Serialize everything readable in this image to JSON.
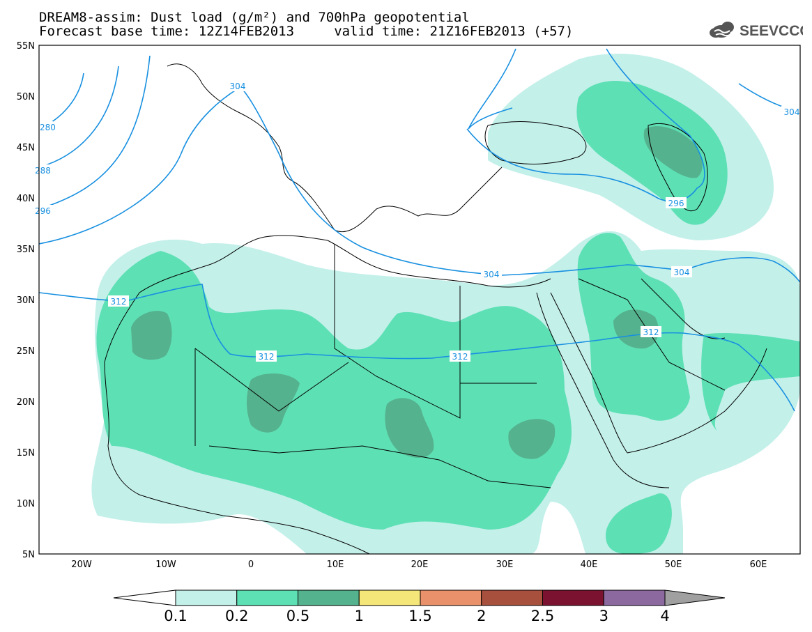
{
  "header": {
    "line1": "DREAM8-assim: Dust load (g/m²) and 700hPa geopotential",
    "line2": "Forecast base time: 12Z14FEB2013     valid time: 21Z16FEB2013 (+57)",
    "logo_text": "SEEVCCC"
  },
  "map": {
    "lon_range": [
      -25,
      65
    ],
    "lat_range": [
      5,
      55
    ],
    "lat_labels": [
      "55N",
      "50N",
      "45N",
      "40N",
      "35N",
      "30N",
      "25N",
      "20N",
      "15N",
      "10N",
      "5N"
    ],
    "lon_labels": [
      "20W",
      "10W",
      "0",
      "10E",
      "20E",
      "30E",
      "40E",
      "50E",
      "60E"
    ],
    "contour_labels": [
      "304",
      "304",
      "280",
      "288",
      "296",
      "312",
      "312",
      "312",
      "304",
      "296",
      "304",
      "312",
      "304"
    ],
    "dust_colors": {
      "c1": "#c4f0ea",
      "c2": "#5ee0b5",
      "c3": "#55b28e"
    },
    "contour_color": "#1890e0",
    "coast_color": "#000000"
  },
  "colorbar": {
    "labels": [
      "0.1",
      "0.2",
      "0.5",
      "1",
      "1.5",
      "2",
      "2.5",
      "3",
      "4"
    ],
    "colors": [
      "#c4f0ea",
      "#5ee0b5",
      "#55b28e",
      "#f5e67a",
      "#e8916a",
      "#a8503e",
      "#7a1230",
      "#8c6aa0"
    ],
    "under_color": "#ffffff",
    "over_color": "#a0a0a0"
  }
}
